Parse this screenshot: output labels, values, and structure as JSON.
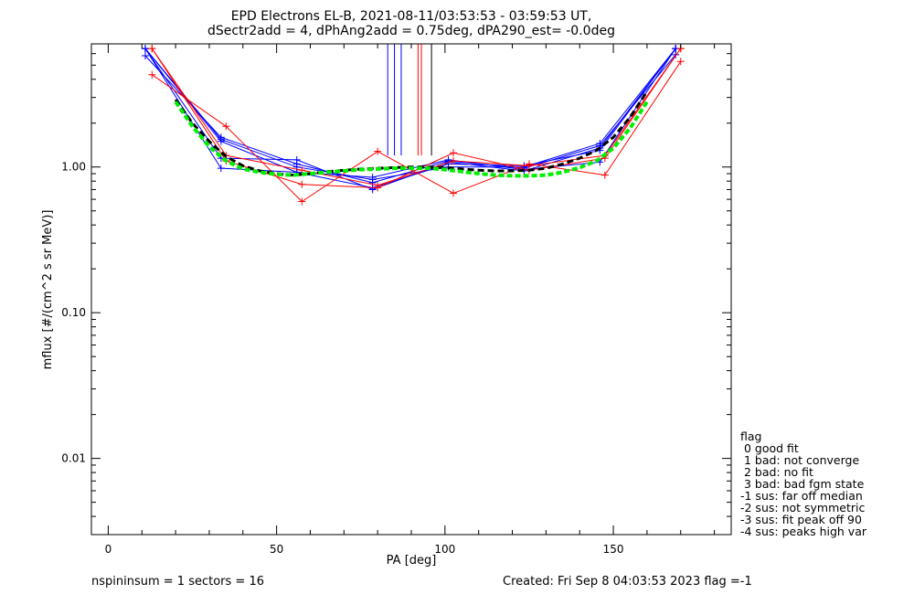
{
  "title_line1": "EPD Electrons EL-B, 2021-08-11/03:53:53 - 03:59:53 UT,",
  "title_line2": "dSectr2add = 4, dPhAng2add = 0.75deg, dPA290_est=  -0.0deg",
  "footer_left": "nspininsum =  1  sectors = 16",
  "footer_right": "Created: Fri Sep  8 04:03:53 2023   flag =-1",
  "legend": {
    "lines": [
      "flag",
      " 0 good fit",
      " 1 bad: not converge",
      " 2 bad: no fit",
      " 3 bad: bad fgm state",
      "-1 sus: far off median",
      "-2 sus: not symmetric",
      "-3 sus: fit peak off 90",
      "-4 sus: peaks high var"
    ]
  },
  "colors": {
    "blue": "#0000ff",
    "red": "#ff0000",
    "black": "#000000",
    "green": "#00ee00"
  },
  "chart_data": {
    "type": "line",
    "xlabel": "PA [deg]",
    "ylabel": "mflux [#/(cm^2 s sr MeV)]",
    "xlim": [
      -5,
      185
    ],
    "ylim": [
      0.003,
      7
    ],
    "y_scale": "log",
    "x_ticks": [
      0,
      50,
      100,
      150
    ],
    "x_tick_labels": [
      "0",
      "50",
      "100",
      "150"
    ],
    "y_ticks": [
      0.01,
      0.1,
      1.0
    ],
    "y_tick_labels": [
      "0.01",
      "0.10",
      "1.00"
    ],
    "series": [
      {
        "color": "blue",
        "x": [
          11,
          33.5,
          56,
          78.5,
          101,
          123.5,
          146,
          168.5
        ],
        "y": [
          5.8,
          1.6,
          1.05,
          0.78,
          1.1,
          0.98,
          1.4,
          5.9
        ]
      },
      {
        "color": "blue",
        "x": [
          11,
          33.5,
          56,
          78.5,
          101,
          123.5,
          146,
          168.5
        ],
        "y": [
          6.5,
          1.5,
          0.92,
          0.72,
          1.05,
          1.02,
          1.3,
          6.5
        ]
      },
      {
        "color": "blue",
        "x": [
          11,
          33.5,
          56,
          78.5,
          101,
          123.5,
          146,
          168.5
        ],
        "y": [
          6.5,
          0.98,
          0.92,
          0.85,
          1.12,
          0.96,
          1.08,
          6.5
        ]
      },
      {
        "color": "blue",
        "x": [
          11,
          33.5,
          56,
          78.5,
          101,
          123.5,
          146,
          168.5
        ],
        "y": [
          6.5,
          1.15,
          1.12,
          0.7,
          1.08,
          0.94,
          1.35,
          6.5
        ]
      },
      {
        "color": "blue",
        "x": [
          11,
          33.5,
          56,
          78.5,
          101,
          123.5,
          146,
          168.5
        ],
        "y": [
          6.5,
          1.55,
          1.0,
          0.82,
          1.0,
          1.0,
          1.45,
          6.5
        ]
      },
      {
        "color": "red",
        "x": [
          13,
          35,
          57.5,
          80,
          102.5,
          125,
          147.5,
          170
        ],
        "y": [
          4.3,
          1.9,
          0.58,
          1.28,
          0.66,
          1.05,
          0.88,
          5.3
        ]
      },
      {
        "color": "red",
        "x": [
          13,
          35,
          57.5,
          80,
          102.5,
          125,
          147.5,
          170
        ],
        "y": [
          6.5,
          1.1,
          0.76,
          0.72,
          1.25,
          0.95,
          1.15,
          6.5
        ]
      },
      {
        "color": "red",
        "x": [
          13,
          35,
          57.5,
          80,
          102.5,
          125,
          147.5,
          170
        ],
        "y": [
          6.5,
          1.2,
          0.95,
          0.75,
          1.1,
          1.02,
          1.2,
          6.5
        ]
      }
    ],
    "fits": [
      {
        "color": "black",
        "style": "dashed",
        "x": [
          20,
          25,
          30,
          35,
          40,
          45,
          50,
          55,
          60,
          65,
          70,
          75,
          80,
          85,
          90,
          95,
          100,
          105,
          110,
          115,
          120,
          125,
          130,
          135,
          140,
          145,
          150,
          155,
          160
        ],
        "y": [
          2.9,
          2.0,
          1.5,
          1.18,
          1.02,
          0.94,
          0.9,
          0.88,
          0.9,
          0.93,
          0.95,
          0.97,
          0.98,
          0.99,
          1.0,
          1.0,
          0.99,
          0.97,
          0.95,
          0.94,
          0.94,
          0.95,
          0.98,
          1.05,
          1.15,
          1.3,
          1.6,
          2.2,
          3.3
        ]
      },
      {
        "color": "green",
        "style": "dashed",
        "x": [
          20,
          25,
          30,
          35,
          40,
          45,
          50,
          55,
          60,
          65,
          70,
          75,
          80,
          85,
          90,
          95,
          100,
          105,
          110,
          115,
          120,
          125,
          130,
          135,
          140,
          145,
          150,
          155,
          160
        ],
        "y": [
          2.8,
          1.9,
          1.38,
          1.1,
          0.97,
          0.92,
          0.89,
          0.88,
          0.9,
          0.92,
          0.94,
          0.96,
          0.97,
          0.98,
          0.98,
          0.98,
          0.96,
          0.93,
          0.9,
          0.88,
          0.87,
          0.87,
          0.88,
          0.92,
          0.99,
          1.1,
          1.35,
          1.85,
          2.8
        ]
      }
    ],
    "vertical_lines": [
      {
        "color": "blue",
        "x": 83
      },
      {
        "color": "blue",
        "x": 85
      },
      {
        "color": "blue",
        "x": 87
      },
      {
        "color": "red",
        "x": 92
      },
      {
        "color": "red",
        "x": 93
      },
      {
        "color": "black",
        "x": 96
      }
    ],
    "vertical_line_bottom_y": 1.2,
    "grid": false
  }
}
